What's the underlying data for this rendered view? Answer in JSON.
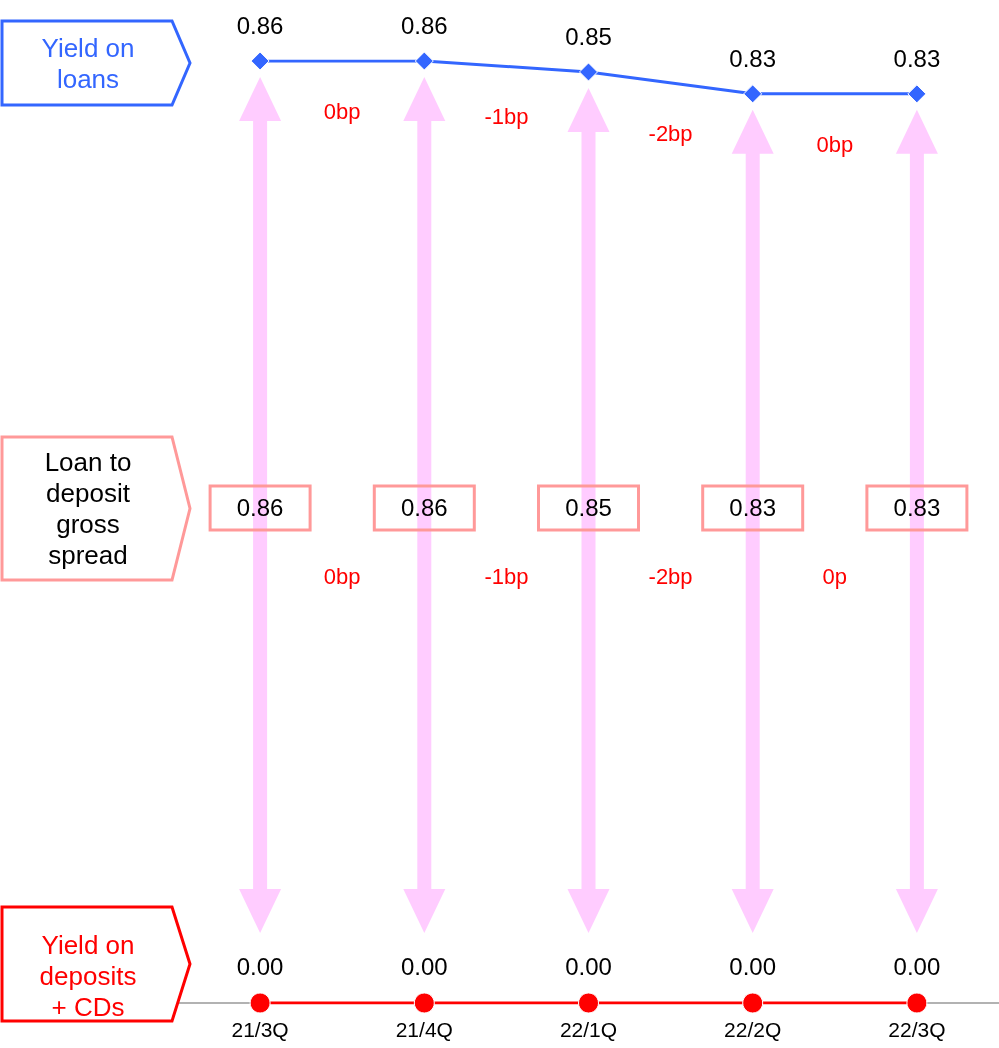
{
  "chart_data": {
    "type": "line",
    "categories": [
      "21/3Q",
      "21/4Q",
      "22/1Q",
      "22/2Q",
      "22/3Q"
    ],
    "series": [
      {
        "name": "Yield on loans",
        "color": "#3366ff",
        "marker": "diamond",
        "values": [
          0.86,
          0.86,
          0.85,
          0.83,
          0.83
        ],
        "value_labels": [
          "0.86",
          "0.86",
          "0.85",
          "0.83",
          "0.83"
        ]
      },
      {
        "name": "Yield on deposits + CDs",
        "color": "#ff0000",
        "marker": "circle",
        "values": [
          0,
          0,
          0,
          0,
          0
        ],
        "value_labels": [
          "0.00",
          "0.00",
          "0.00",
          "0.00",
          "0.00"
        ]
      }
    ],
    "tick_labels": "x",
    "grid": false,
    "legend": false,
    "annotations": [
      "Loan to deposit gross spread",
      "0bp",
      "-1bp",
      "-2bp",
      "0bp",
      "0bp",
      "-1bp",
      "-2bp",
      "0p",
      "0.86",
      "0.86",
      "0.85",
      "0.83",
      "0.83"
    ]
  }
}
